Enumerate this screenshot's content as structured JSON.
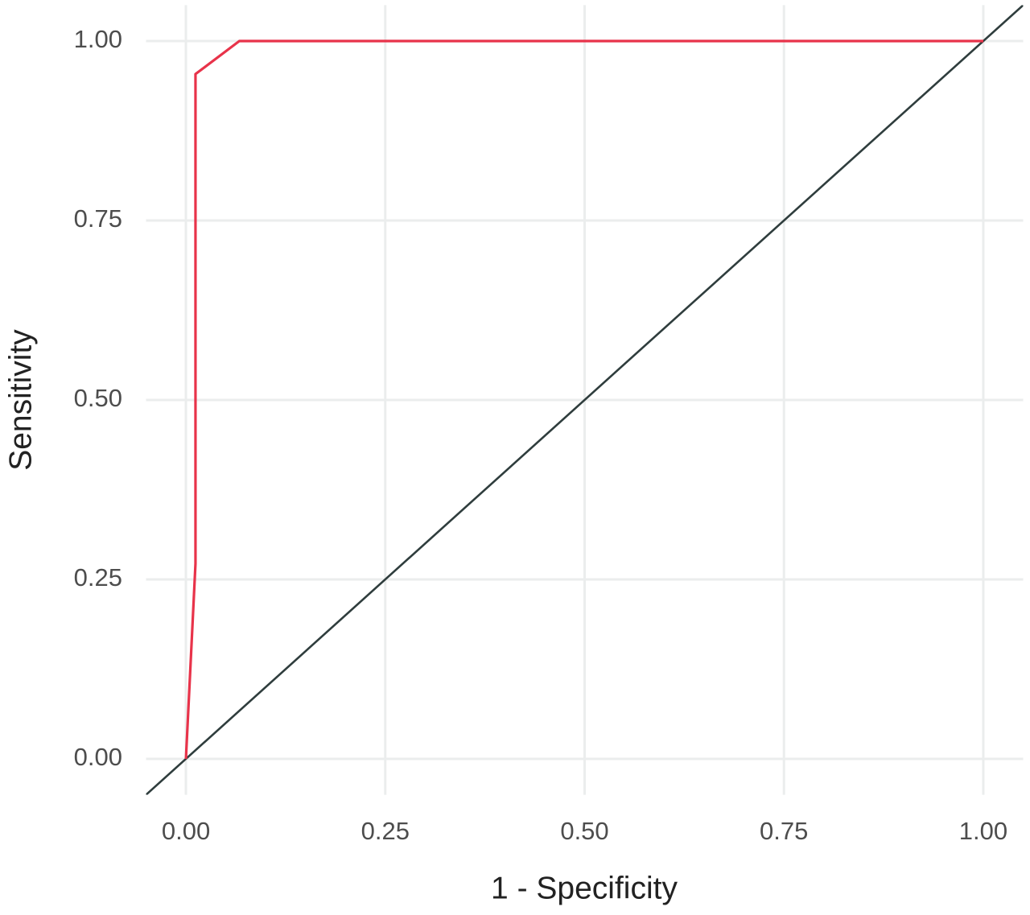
{
  "chart_data": {
    "type": "line",
    "x_label": "1 - Specificity",
    "y_label": "Sensitivity",
    "x": [
      0,
      0.012,
      0.012,
      0.067,
      1
    ],
    "series": [
      {
        "color": "#e8334a",
        "values": [
          0,
          0.272,
          0.954,
          1,
          1
        ]
      }
    ],
    "reference_line": {
      "slope": 1,
      "intercept": 0,
      "color": "#2f3d3d"
    },
    "xlim": [
      -0.05,
      1.05
    ],
    "ylim": [
      -0.05,
      1.05
    ],
    "xticks": [
      {
        "value": 0,
        "label": "0.00"
      },
      {
        "value": 0.25,
        "label": "0.25"
      },
      {
        "value": 0.5,
        "label": "0.50"
      },
      {
        "value": 0.75,
        "label": "0.75"
      },
      {
        "value": 1,
        "label": "1.00"
      }
    ],
    "yticks": [
      {
        "value": 0,
        "label": "0.00"
      },
      {
        "value": 0.25,
        "label": "0.25"
      },
      {
        "value": 0.5,
        "label": "0.50"
      },
      {
        "value": 0.75,
        "label": "0.75"
      },
      {
        "value": 1,
        "label": "1.00"
      }
    ],
    "grid": true
  }
}
